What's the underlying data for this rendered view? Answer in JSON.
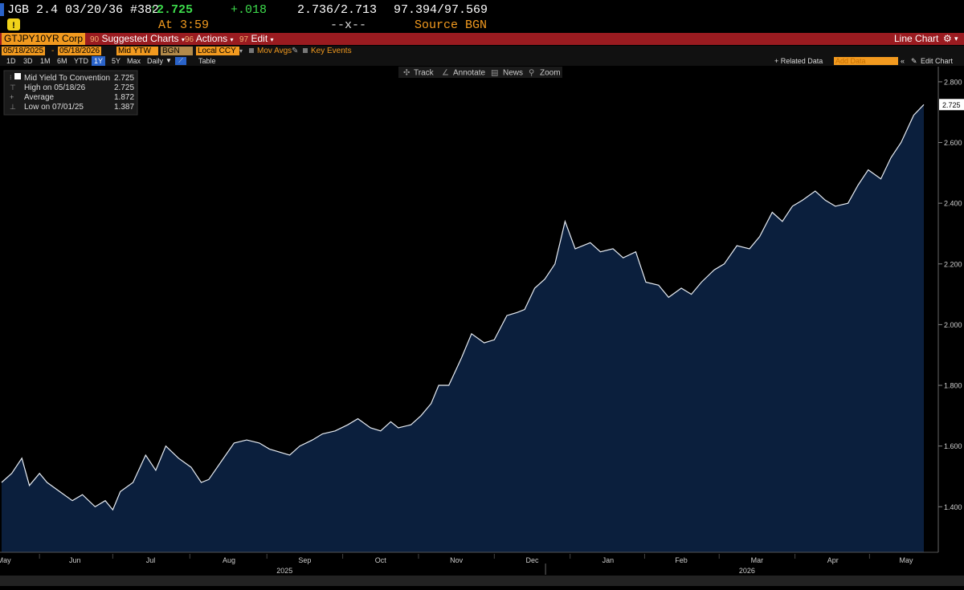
{
  "quote": {
    "security": "JGB 2.4 03/20/36 #382",
    "last": "↑2.725",
    "change": "+.018",
    "bid_ask": "2.736/2.713",
    "price": "97.394/97.569",
    "time": "At 3:59",
    "size": "--x--",
    "source": "Source BGN"
  },
  "toolbar": {
    "ticker": "GTJPY10YR Corp",
    "suggested_num": "90",
    "suggested": "Suggested Charts",
    "actions_num": "96",
    "actions": "Actions",
    "edit_num": "97",
    "edit": "Edit",
    "chart_type": "Line Chart"
  },
  "params": {
    "start_date": "05/18/2025",
    "end_date": "05/18/2026",
    "field": "Mid YTW",
    "source": "BGN",
    "currency": "Local CCY",
    "mov_avgs": "Mov Avgs",
    "key_events": "Key Events"
  },
  "ranges": [
    "1D",
    "3D",
    "1M",
    "6M",
    "YTD",
    "1Y",
    "5Y",
    "Max"
  ],
  "selected_range": "1Y",
  "periodicity": "Daily",
  "table_label": "Table",
  "right_tools": {
    "related": "+ Related Data",
    "add_data": "Add Data",
    "edit_chart": "Edit Chart"
  },
  "chart_tools": [
    "Track",
    "Annotate",
    "News",
    "Zoom"
  ],
  "legend": {
    "rows": [
      {
        "label": "Mid Yield To Convention",
        "value": "2.725"
      },
      {
        "label": "High on 05/18/26",
        "value": "2.725"
      },
      {
        "label": "Average",
        "value": "1.872"
      },
      {
        "label": "Low on 07/01/25",
        "value": "1.387"
      }
    ]
  },
  "colors": {
    "background": "#000000",
    "area_fill": "#0b1f3d",
    "line": "#e8edf4",
    "toolbar_red": "#9a1b20",
    "field_orange": "#f29a1f",
    "up_green": "#3ddc4c"
  },
  "chart_data": {
    "type": "area",
    "title": "",
    "ylim": [
      1.25,
      2.85
    ],
    "yticks": [
      1.4,
      1.6,
      1.8,
      2.0,
      2.2,
      2.4,
      2.6,
      2.8
    ],
    "ytick_labels": [
      "1.400",
      "1.600",
      "1.800",
      "2.000",
      "2.200",
      "2.400",
      "2.600",
      "2.800"
    ],
    "last_value_label": "2.725",
    "xlim": [
      "2025-05-18",
      "2026-05-18"
    ],
    "x_tick_labels": [
      "May",
      "Jun",
      "Jul",
      "Aug",
      "Sep",
      "Oct",
      "Nov",
      "Dec",
      "Jan",
      "Feb",
      "Mar",
      "Apr",
      "May"
    ],
    "x_tick_dates": [
      "2025-05-19",
      "2025-06-16",
      "2025-07-16",
      "2025-08-16",
      "2025-09-15",
      "2025-10-15",
      "2025-11-14",
      "2025-12-14",
      "2026-01-13",
      "2026-02-11",
      "2026-03-13",
      "2026-04-12",
      "2026-05-11"
    ],
    "year_labels": [
      "2025",
      "2026"
    ],
    "year_label_dates": [
      "2025-09-07",
      "2026-03-09"
    ],
    "year_divider_date": "2026-01-01",
    "series": [
      {
        "name": "Mid Yield To Convention",
        "x": [
          "2025-05-18",
          "2025-05-22",
          "2025-05-26",
          "2025-05-29",
          "2025-06-02",
          "2025-06-05",
          "2025-06-10",
          "2025-06-15",
          "2025-06-19",
          "2025-06-24",
          "2025-06-28",
          "2025-07-01",
          "2025-07-04",
          "2025-07-09",
          "2025-07-14",
          "2025-07-18",
          "2025-07-22",
          "2025-07-27",
          "2025-08-01",
          "2025-08-05",
          "2025-08-08",
          "2025-08-13",
          "2025-08-18",
          "2025-08-23",
          "2025-08-28",
          "2025-09-01",
          "2025-09-05",
          "2025-09-09",
          "2025-09-13",
          "2025-09-18",
          "2025-09-22",
          "2025-09-27",
          "2025-10-02",
          "2025-10-06",
          "2025-10-11",
          "2025-10-15",
          "2025-10-19",
          "2025-10-22",
          "2025-10-27",
          "2025-10-31",
          "2025-11-04",
          "2025-11-07",
          "2025-11-11",
          "2025-11-16",
          "2025-11-20",
          "2025-11-25",
          "2025-11-29",
          "2025-12-04",
          "2025-12-08",
          "2025-12-11",
          "2025-12-15",
          "2025-12-19",
          "2025-12-23",
          "2025-12-27",
          "2025-12-31",
          "2026-01-06",
          "2026-01-10",
          "2026-01-15",
          "2026-01-19",
          "2026-01-24",
          "2026-01-28",
          "2026-02-02",
          "2026-02-06",
          "2026-02-11",
          "2026-02-15",
          "2026-02-19",
          "2026-02-24",
          "2026-02-28",
          "2026-03-05",
          "2026-03-10",
          "2026-03-14",
          "2026-03-19",
          "2026-03-23",
          "2026-03-27",
          "2026-03-31",
          "2026-04-05",
          "2026-04-09",
          "2026-04-13",
          "2026-04-18",
          "2026-04-22",
          "2026-04-26",
          "2026-05-01",
          "2026-05-05",
          "2026-05-09",
          "2026-05-14",
          "2026-05-18"
        ],
        "y": [
          1.48,
          1.51,
          1.56,
          1.47,
          1.51,
          1.48,
          1.45,
          1.42,
          1.44,
          1.4,
          1.42,
          1.39,
          1.45,
          1.48,
          1.57,
          1.52,
          1.6,
          1.56,
          1.53,
          1.48,
          1.49,
          1.55,
          1.61,
          1.62,
          1.61,
          1.59,
          1.58,
          1.57,
          1.6,
          1.62,
          1.64,
          1.65,
          1.67,
          1.69,
          1.66,
          1.65,
          1.68,
          1.66,
          1.67,
          1.7,
          1.74,
          1.8,
          1.8,
          1.89,
          1.97,
          1.94,
          1.95,
          2.03,
          2.04,
          2.05,
          2.12,
          2.15,
          2.2,
          2.34,
          2.25,
          2.27,
          2.24,
          2.25,
          2.22,
          2.24,
          2.14,
          2.13,
          2.09,
          2.12,
          2.1,
          2.14,
          2.18,
          2.2,
          2.26,
          2.25,
          2.29,
          2.37,
          2.34,
          2.39,
          2.41,
          2.44,
          2.41,
          2.39,
          2.4,
          2.46,
          2.51,
          2.48,
          2.55,
          2.6,
          2.69,
          2.725
        ]
      }
    ],
    "grid": false,
    "legend_position": "top-left"
  }
}
